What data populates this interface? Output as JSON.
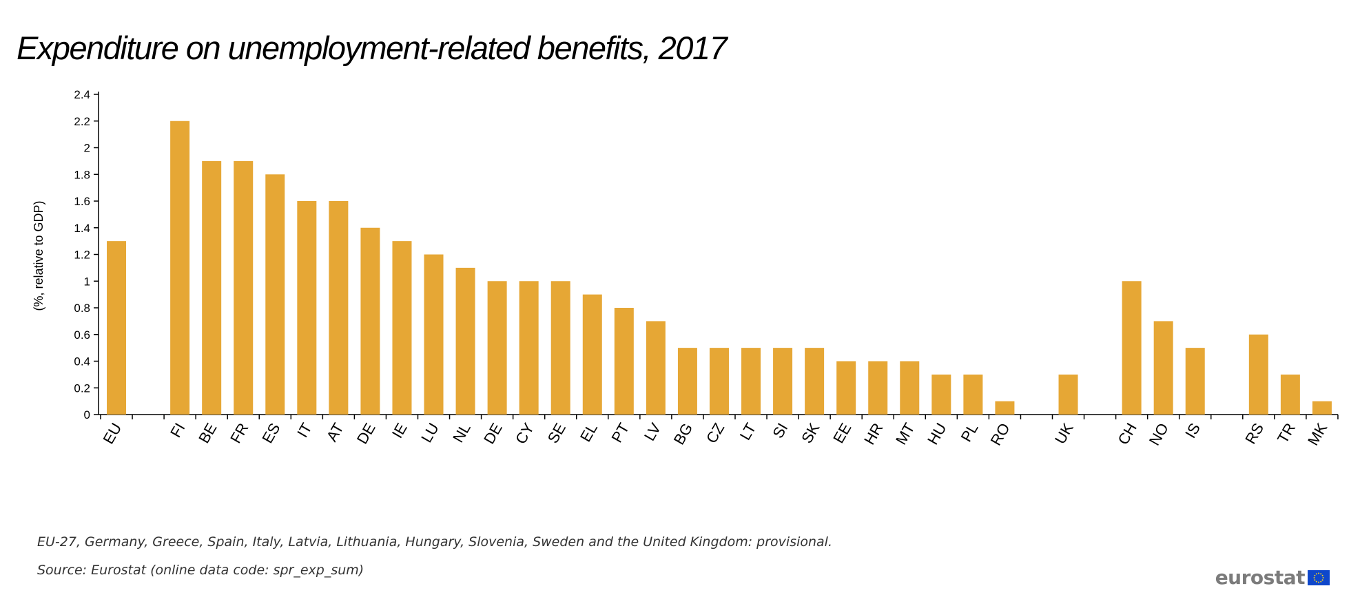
{
  "chart_data": {
    "type": "bar",
    "title": "Expenditure on unemployment-related benefits, 2017",
    "ylabel": "(%, relative to GDP)",
    "xlabel": "",
    "ylim": [
      0,
      2.4
    ],
    "yticks": [
      "0",
      "0.2",
      "0.4",
      "0.6",
      "0.8",
      "1",
      "1.2",
      "1.4",
      "1.6",
      "1.8",
      "2",
      "2.2",
      "2.4"
    ],
    "categories": [
      "EU",
      "",
      "FI",
      "BE",
      "FR",
      "ES",
      "IT",
      "AT",
      "DE",
      "IE",
      "LU",
      "NL",
      "DE",
      "CY",
      "SE",
      "EL",
      "PT",
      "LV",
      "BG",
      "CZ",
      "LT",
      "SI",
      "SK",
      "EE",
      "HR",
      "MT",
      "HU",
      "PL",
      "RO",
      "",
      "UK",
      "",
      "CH",
      "NO",
      "IS",
      "",
      "RS",
      "TR",
      "MK"
    ],
    "values": [
      1.3,
      null,
      2.2,
      1.9,
      1.9,
      1.8,
      1.6,
      1.6,
      1.4,
      1.3,
      1.2,
      1.1,
      1.0,
      1.0,
      1.0,
      0.9,
      0.8,
      0.7,
      0.5,
      0.5,
      0.5,
      0.5,
      0.5,
      0.4,
      0.4,
      0.4,
      0.3,
      0.3,
      0.1,
      null,
      0.3,
      null,
      1.0,
      0.7,
      0.5,
      null,
      0.6,
      0.3,
      0.1
    ],
    "bar_color": "#e6a735",
    "grid": false,
    "legend": "none"
  },
  "notes": {
    "provisional": "EU-27, Germany, Greece, Spain, Italy, Latvia, Lithuania, Hungary, Slovenia, Sweden and the United Kingdom: provisional.",
    "source": "Source: Eurostat (online data code: spr_exp_sum)"
  },
  "brand": {
    "name": "eurostat",
    "flag_icon": "eu-flag-icon",
    "flag_color": "#0e47cb",
    "star_color": "#ffd617"
  }
}
